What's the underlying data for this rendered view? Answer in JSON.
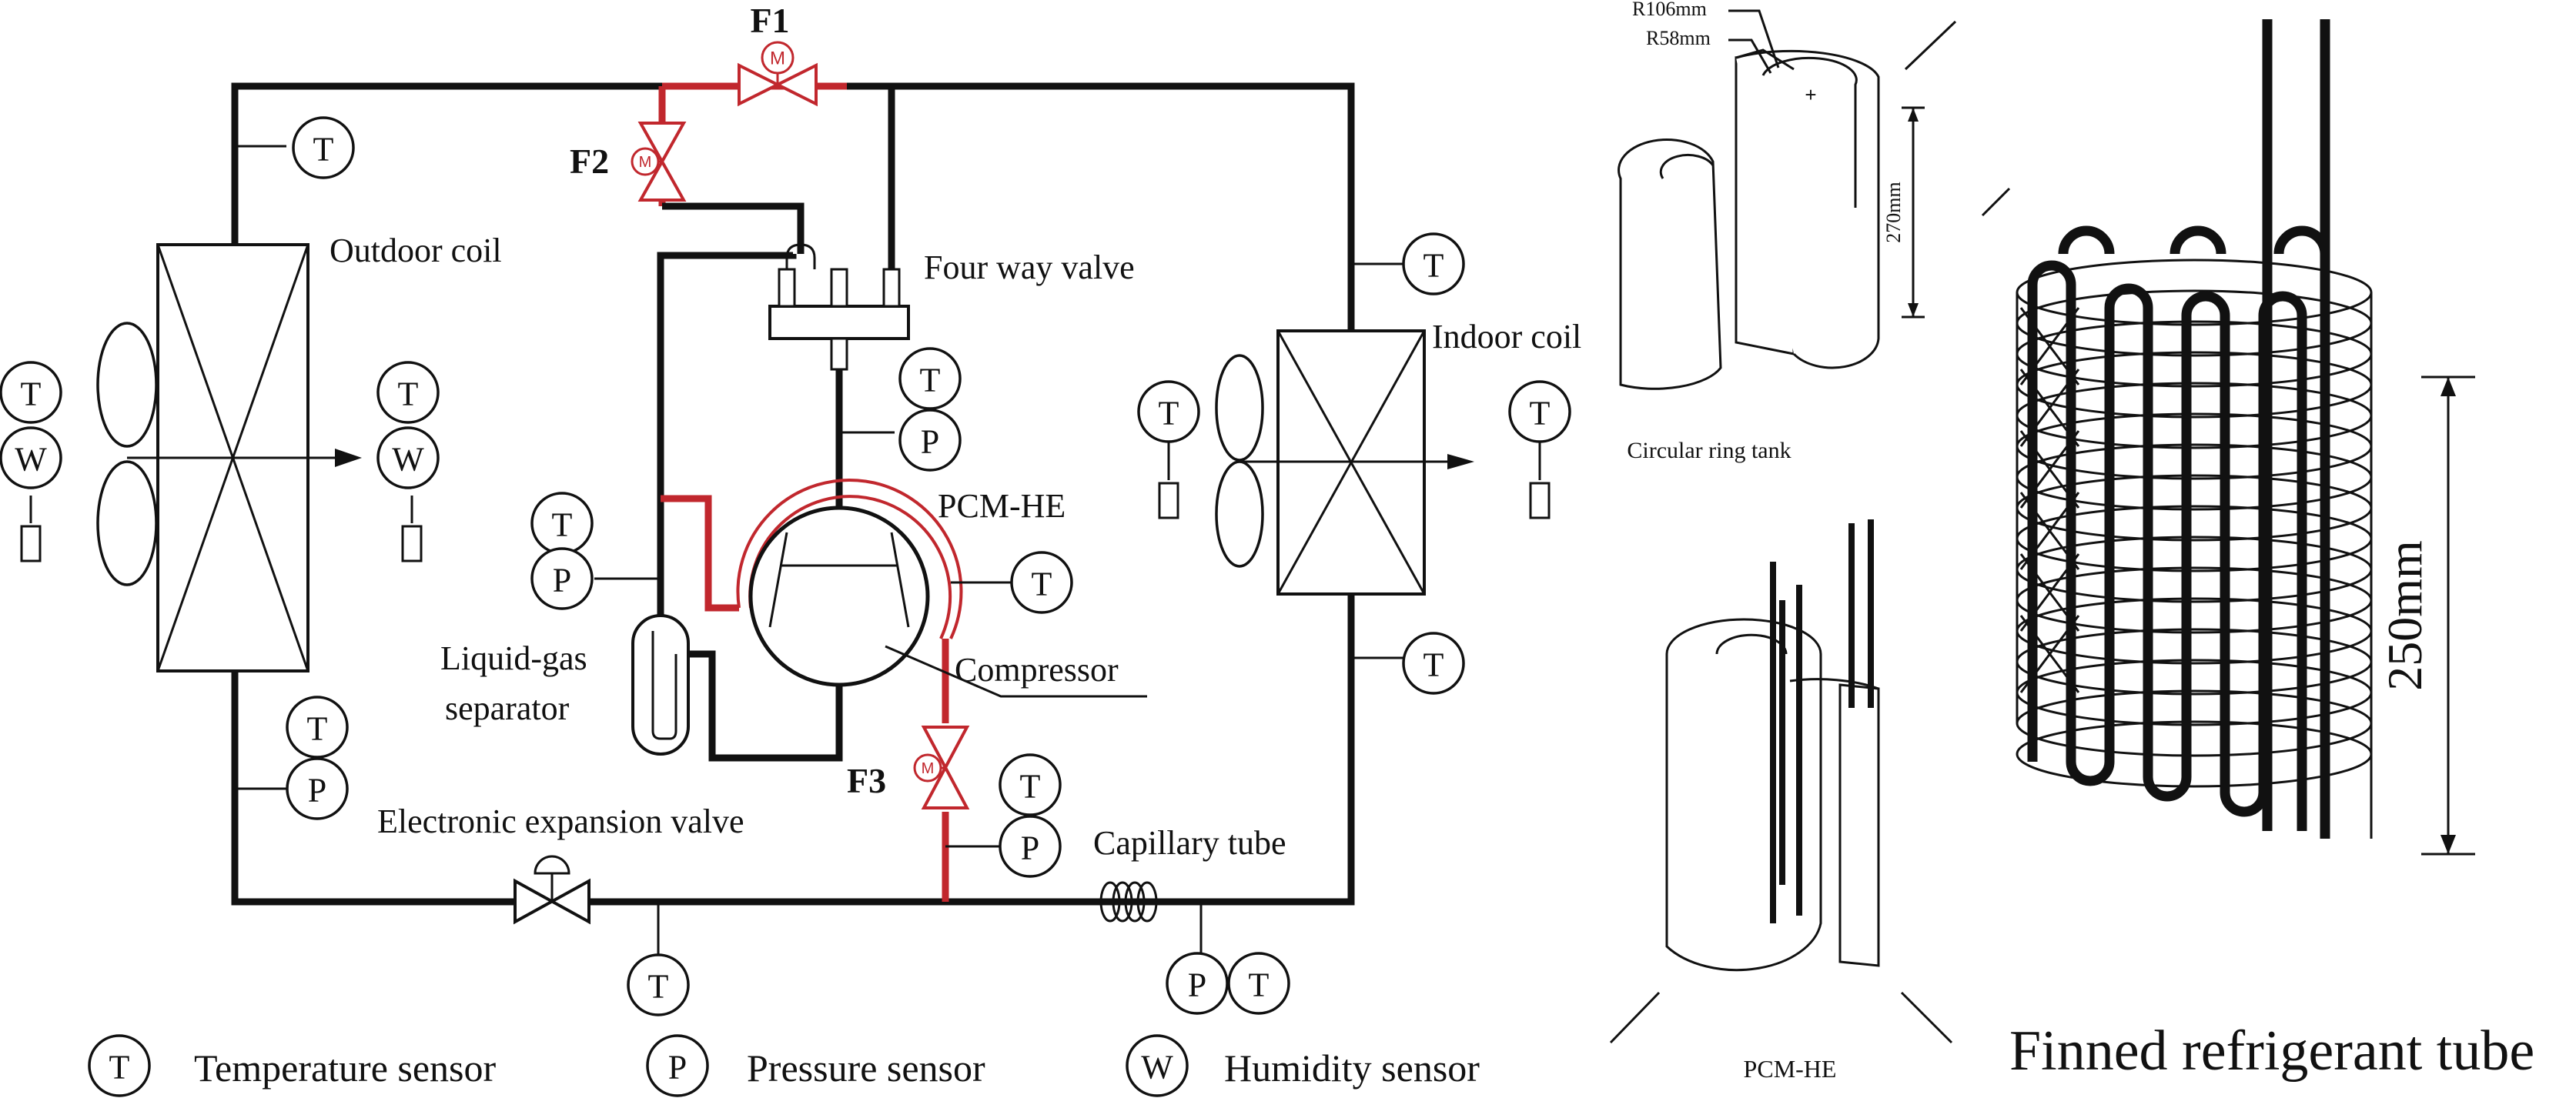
{
  "valves": {
    "f1": "F1",
    "f2": "F2",
    "f3": "F3",
    "motor": "M"
  },
  "components": {
    "outdoor_coil": "Outdoor coil",
    "four_way_valve": "Four way valve",
    "indoor_coil": "Indoor coil",
    "pcm_he": "PCM-HE",
    "liquid_gas_separator_line1": "Liquid-gas",
    "liquid_gas_separator_line2": "separator",
    "compressor": "Compressor",
    "electronic_expansion_valve": "Electronic expansion valve",
    "capillary_tube": "Capillary tube"
  },
  "sensor_letters": {
    "temperature": "T",
    "pressure": "P",
    "humidity": "W"
  },
  "legend": {
    "temperature": "Temperature sensor",
    "pressure": "Pressure sensor",
    "humidity": "Humidity sensor"
  },
  "tank": {
    "r_outer": "R106mm",
    "r_inner": "R58mm",
    "height": "270mm",
    "caption": "Circular ring tank"
  },
  "pcm_he_caption": "PCM-HE",
  "tube": {
    "height": "250mm",
    "caption": "Finned refrigerant tube"
  },
  "colors": {
    "red_line": "#c1272d",
    "black_line": "#111111"
  }
}
